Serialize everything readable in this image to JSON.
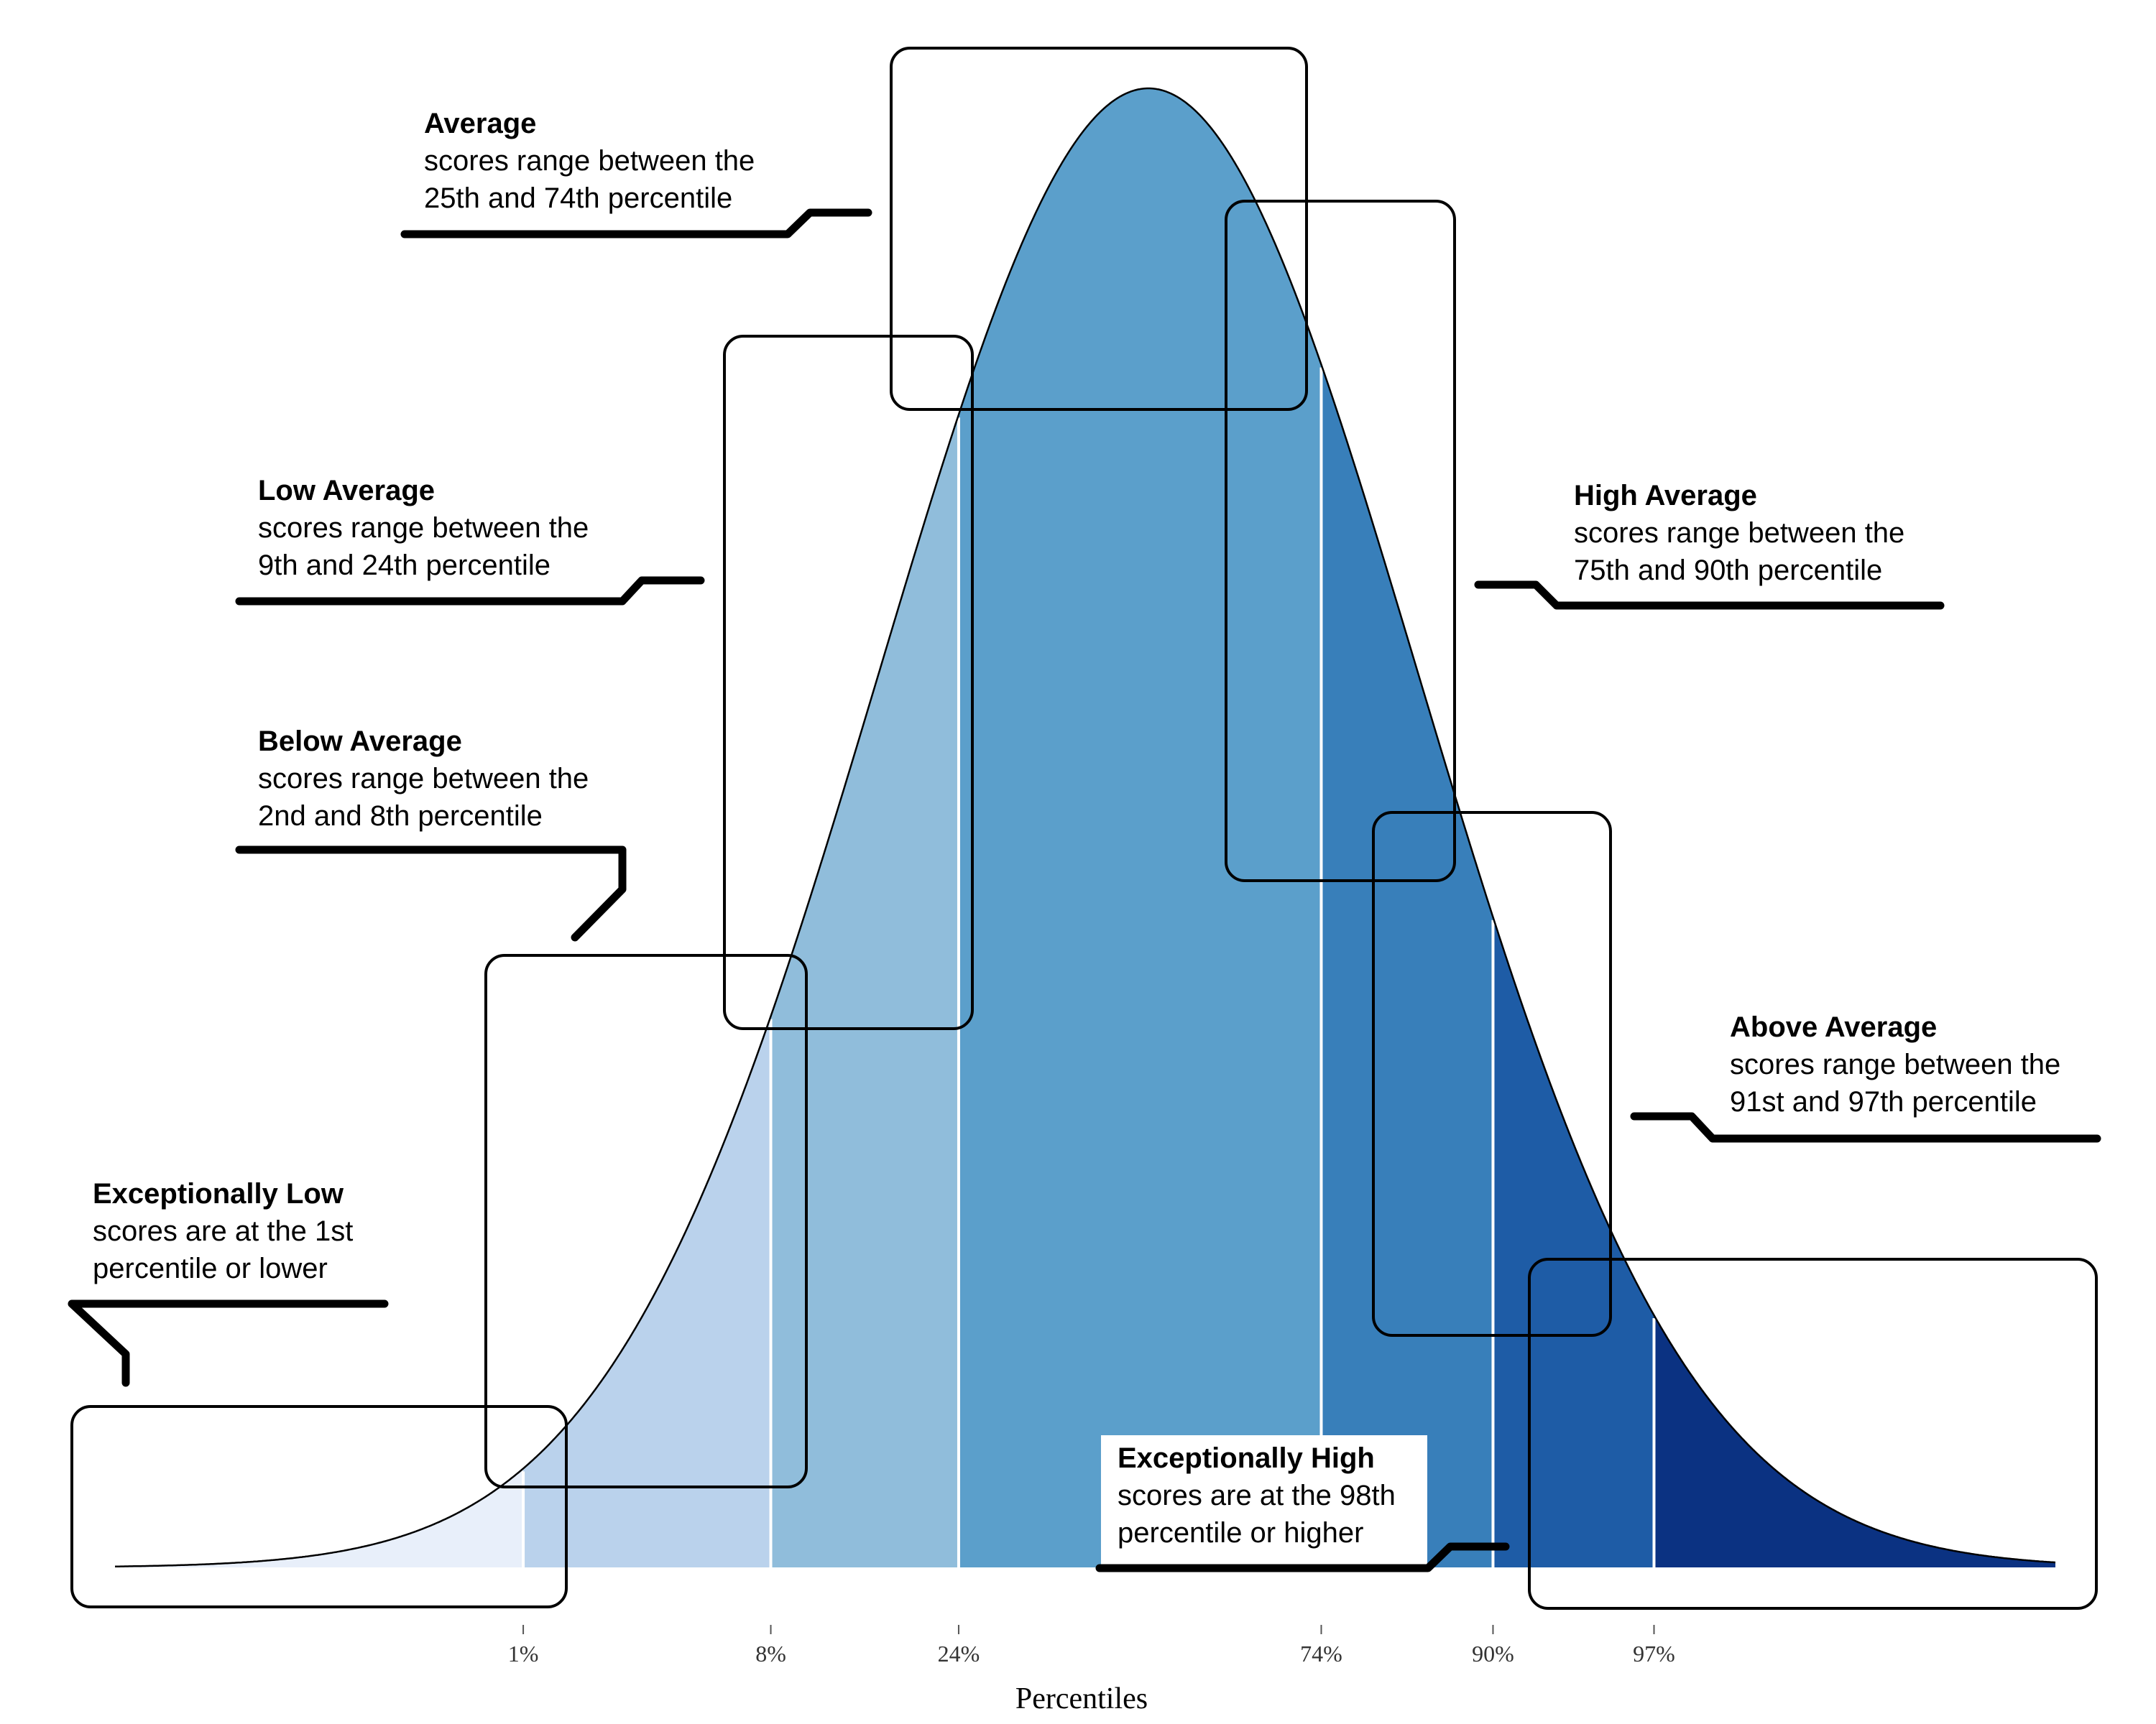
{
  "chart_data": {
    "type": "area",
    "xlabel": "Percentiles",
    "tick_labels": [
      "1%",
      "8%",
      "24%",
      "74%",
      "90%",
      "97%"
    ],
    "band_boundaries_z": [
      -2.326,
      -1.405,
      -0.706,
      0.643,
      1.282,
      1.881
    ],
    "distribution": "normal",
    "grid": false,
    "bands": [
      {
        "title": "Exceptionally Low",
        "lines": [
          "scores are at the 1st",
          "percentile or lower"
        ],
        "color": "#e8effa"
      },
      {
        "title": "Below Average",
        "lines": [
          "scores range between the",
          "2nd and 8th percentile"
        ],
        "color": "#bad2ec"
      },
      {
        "title": "Low Average",
        "lines": [
          "scores range between the",
          "9th and 24th percentile"
        ],
        "color": "#90bddb"
      },
      {
        "title": "Average",
        "lines": [
          "scores range between the",
          "25th and 74th percentile"
        ],
        "color": "#5b9fcb"
      },
      {
        "title": "High Average",
        "lines": [
          "scores range between the",
          "75th and 90th percentile"
        ],
        "color": "#387fba"
      },
      {
        "title": "Above Average",
        "lines": [
          "scores range between the",
          "91st and 97th percentile"
        ],
        "color": "#1e5ca6"
      },
      {
        "title": "Exceptionally High",
        "lines": [
          "scores are at the 98th",
          "percentile or higher"
        ],
        "color": "#0b3282"
      }
    ]
  }
}
